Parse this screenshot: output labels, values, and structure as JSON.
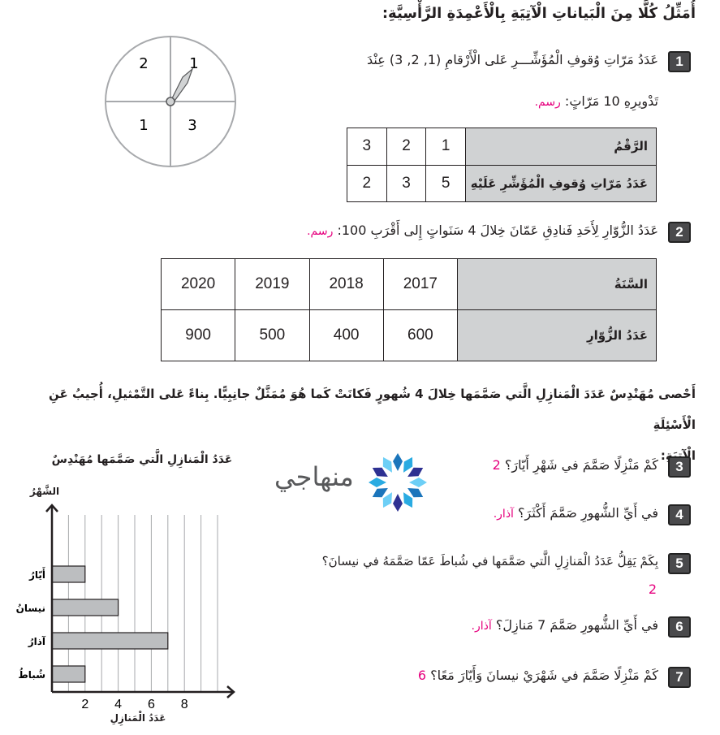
{
  "heading": "أُمَثِّلُ كُلًّا مِنَ الْبَياناتِ الْآتِيَةِ بِالْأَعْمِدَةِ الرَّأْسِيَّةِ:",
  "items": [
    {
      "number": "1",
      "line1": "عَدَدُ مَرّاتِ وُقوفِ الْمُؤَشِّـــرِ عَلى الْأَرْقامِ (1, 2, 3) عِنْدَ",
      "line2": "تَدْويرِهِ 10 مَرّاتٍ:",
      "answer": "رسم."
    },
    {
      "number": "2",
      "line1": "عَدَدُ الزُّوّارِ لِأَحَدِ فَنادِقِ عَمّانَ خِلالَ 4 سَنَواتٍ إِلى أَقْرَبِ 100:",
      "answer": "رسم."
    }
  ],
  "spinner": {
    "labels": [
      "1",
      "2",
      "1",
      "3"
    ]
  },
  "table1": {
    "headers": [
      "الرَّقْمُ",
      "3",
      "2",
      "1"
    ],
    "row": [
      "عَدَدُ مَرّاتِ وُقوفِ الْمُؤَشِّرِ عَلَيْهِ",
      "2",
      "3",
      "5"
    ]
  },
  "table2": {
    "headers": [
      "السَّنَةُ",
      "2020",
      "2019",
      "2018",
      "2017"
    ],
    "row": [
      "عَدَدُ الزُّوّارِ",
      "900",
      "500",
      "400",
      "600"
    ]
  },
  "paragraph": {
    "line1": "أَحْصى مُهَنْدِسٌ عَدَدَ الْمَنازِلِ الَّتي صَمَّمَها خِلالَ 4 شُهورٍ فَكانَتْ كَما هُوَ مُمَثَّلٌ جانِبِيًّا. بِناءً عَلى التَّمْثيلِ، أُجيبُ عَنِ الْأَسْئِلَةِ",
    "line2": "الْآتِيَةِ:"
  },
  "logo": {
    "text": "منهاجي"
  },
  "questions": [
    {
      "number": "3",
      "text": "كَمْ مَنْزِلًا صَمَّمَ في شَهْرِ أَيّارَ؟",
      "answer": "2"
    },
    {
      "number": "4",
      "text": "في أَيِّ الشُّهورِ صَمَّمَ أَكْثَرَ؟",
      "answer": "آذار."
    },
    {
      "number": "5",
      "text": "بِكَمْ يَقِلُّ عَدَدُ الْمَنازِلِ الَّتي صَمَّمَها في شُباطَ عَمّا صَمَّمَهُ في نيسانَ؟",
      "answer": "2"
    },
    {
      "number": "6",
      "text": "في أَيِّ الشُّهورِ صَمَّمَ 7 مَنازِلَ؟",
      "answer": "آذار."
    },
    {
      "number": "7",
      "text": "كَمْ مَنْزِلًا صَمَّمَ في شَهْرَيْ نيسانَ وَأَيّارَ مَعًا؟",
      "answer": "6"
    }
  ],
  "chart_data": {
    "type": "bar",
    "orientation": "horizontal",
    "title": "عَدَدُ الْمَنازِلِ الَّتي صَمَّمَها مُهَنْدِسٌ",
    "xlabel": "عَدَدُ الْمَنازِلِ",
    "ylabel": "الشَّهْرُ",
    "categories": [
      "شُباطُ",
      "آذارُ",
      "نيسانُ",
      "أَيّارُ"
    ],
    "values": [
      2,
      7,
      4,
      2
    ],
    "xlim": [
      0,
      10
    ],
    "xticks": [
      "2",
      "4",
      "6",
      "8"
    ],
    "grid": true,
    "bar_color": "#bcbec0"
  }
}
